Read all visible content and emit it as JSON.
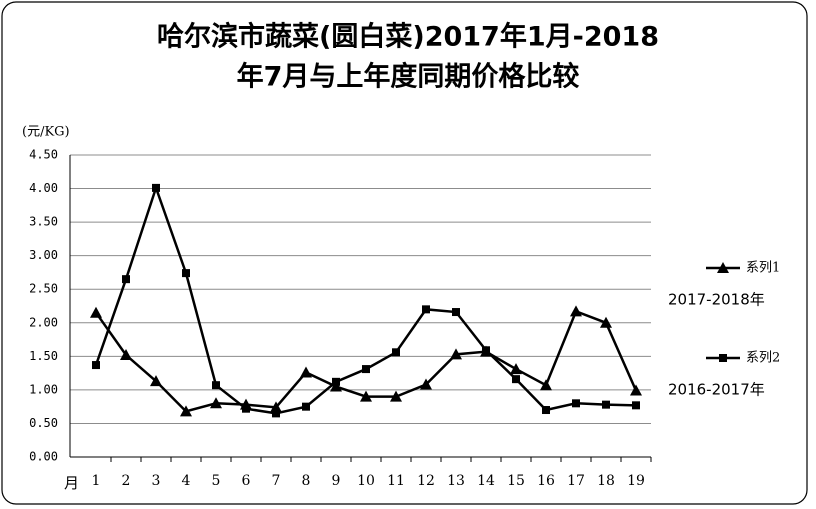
{
  "chart_data": {
    "type": "line",
    "title": [
      "哈尔滨市蔬菜(圆白菜)2017年1月-2018",
      "年7月与上年度同期价格比较"
    ],
    "y_label": "(元/KG)",
    "x_label": "月",
    "categories": [
      "1",
      "2",
      "3",
      "4",
      "5",
      "6",
      "7",
      "8",
      "9",
      "10",
      "11",
      "12",
      "13",
      "14",
      "15",
      "16",
      "17",
      "18",
      "19"
    ],
    "series": [
      {
        "name": "系列1",
        "color": "#000000",
        "marker": "triangle",
        "annotation": "2017-2018年",
        "values": [
          2.15,
          1.52,
          1.13,
          0.68,
          0.8,
          0.78,
          0.74,
          1.26,
          1.05,
          0.9,
          0.9,
          1.08,
          1.53,
          1.57,
          1.31,
          1.07,
          2.17,
          2.0,
          0.99
        ]
      },
      {
        "name": "系列2",
        "color": "#000000",
        "marker": "square",
        "annotation": "2016-2017年",
        "values": [
          1.37,
          2.65,
          4.01,
          2.74,
          1.07,
          0.72,
          0.65,
          0.75,
          1.12,
          1.31,
          1.56,
          2.2,
          2.16,
          1.59,
          1.16,
          0.7,
          0.8,
          0.78,
          0.77
        ]
      }
    ],
    "ylim": [
      0,
      4.5
    ],
    "yticks": [
      {
        "value": 0,
        "label": "0.00"
      },
      {
        "value": 0.5,
        "label": "0.50"
      },
      {
        "value": 1,
        "label": "1.00"
      },
      {
        "value": 1.5,
        "label": "1.50"
      },
      {
        "value": 2,
        "label": "2.00"
      },
      {
        "value": 2.5,
        "label": "2.50"
      },
      {
        "value": 3,
        "label": "3.00"
      },
      {
        "value": 3.5,
        "label": "3.50"
      },
      {
        "value": 4,
        "label": "4.00"
      },
      {
        "value": 4.5,
        "label": "4.50"
      }
    ],
    "grid": true
  }
}
